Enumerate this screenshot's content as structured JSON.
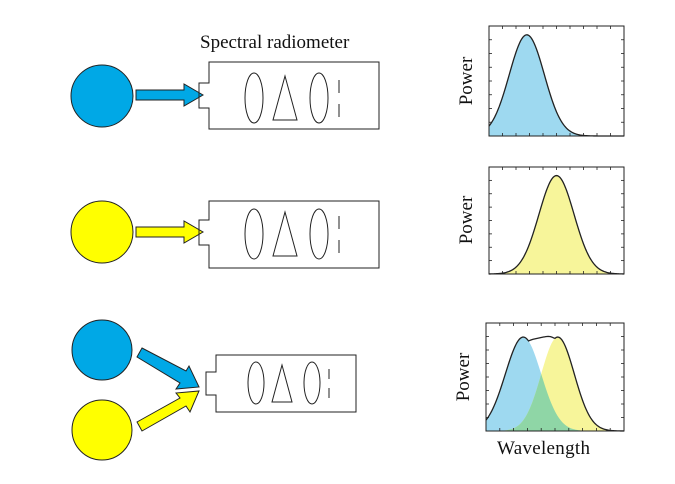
{
  "diagram": {
    "title": "Spectral radiometer",
    "colors": {
      "blue": "#00a8e6",
      "yellow": "#ffff00",
      "outline": "#222222",
      "blue_fill": "#9ed9f0",
      "yellow_fill": "#f7f59a",
      "overlap_fill": "#8fd6a6"
    },
    "rows": [
      {
        "sources": [
          "blue"
        ],
        "chart": {
          "ylabel": "Power",
          "xlabel": ""
        }
      },
      {
        "sources": [
          "yellow"
        ],
        "chart": {
          "ylabel": "Power",
          "xlabel": ""
        }
      },
      {
        "sources": [
          "blue",
          "yellow"
        ],
        "chart": {
          "ylabel": "Power",
          "xlabel": "Wavelength"
        }
      }
    ]
  },
  "chart_data": [
    {
      "type": "area",
      "ylabel": "Power",
      "series": [
        {
          "center": 0.28,
          "width": 0.13,
          "peak": 0.92
        }
      ]
    },
    {
      "type": "area",
      "ylabel": "Power",
      "series": [
        {
          "center": 0.5,
          "width": 0.13,
          "peak": 0.92
        }
      ]
    },
    {
      "type": "area",
      "ylabel": "Power",
      "xlabel": "Wavelength",
      "series": [
        {
          "center": 0.27,
          "width": 0.13,
          "peak": 0.87
        },
        {
          "center": 0.52,
          "width": 0.12,
          "peak": 0.87
        }
      ]
    }
  ]
}
